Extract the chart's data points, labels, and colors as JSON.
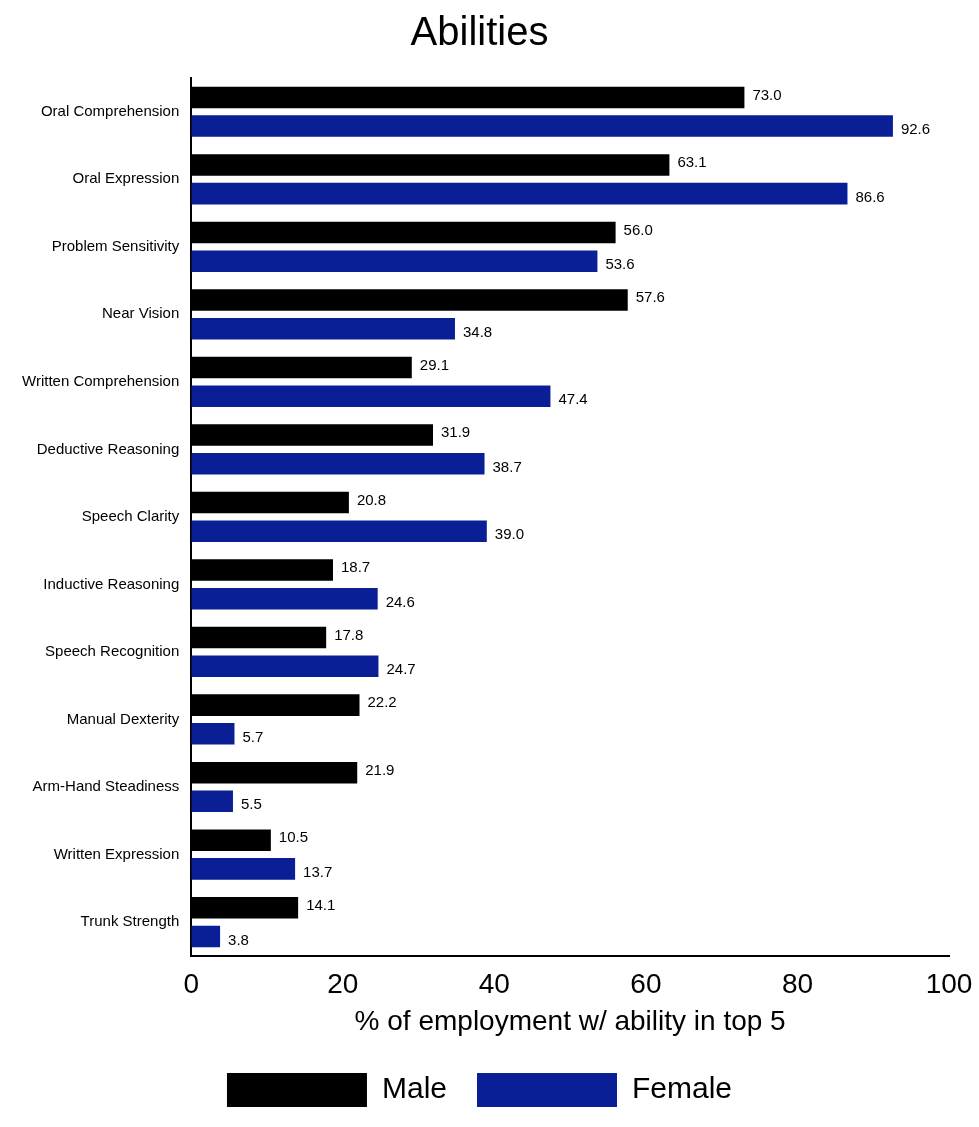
{
  "chart_data": {
    "type": "bar",
    "orientation": "horizontal",
    "title": "Abilities",
    "xlabel": "% of employment w/ ability in top 5",
    "categories": [
      "Oral Comprehension",
      "Oral Expression",
      "Problem Sensitivity",
      "Near Vision",
      "Written Comprehension",
      "Deductive Reasoning",
      "Speech Clarity",
      "Inductive Reasoning",
      "Speech Recognition",
      "Manual Dexterity",
      "Arm-Hand Steadiness",
      "Written Expression",
      "Trunk Strength"
    ],
    "series": [
      {
        "name": "Male",
        "color": "#000000",
        "values": [
          73.0,
          63.1,
          56.0,
          57.6,
          29.1,
          31.9,
          20.8,
          18.7,
          17.8,
          22.2,
          21.9,
          10.5,
          14.1
        ],
        "value_labels": [
          "73.0",
          "63.1",
          "56.0",
          "57.6",
          "29.1",
          "31.9",
          "20.8",
          "18.7",
          "17.8",
          "22.2",
          "21.9",
          "10.5",
          "14.1"
        ]
      },
      {
        "name": "Female",
        "color": "#0a1f96",
        "values": [
          92.6,
          86.6,
          53.6,
          34.8,
          47.4,
          38.7,
          39.0,
          24.6,
          24.7,
          5.7,
          5.5,
          13.7,
          3.8
        ],
        "value_labels": [
          "92.6",
          "86.6",
          "53.6",
          "34.8",
          "47.4",
          "38.7",
          "39.0",
          "24.6",
          "24.7",
          "5.7",
          "5.5",
          "13.7",
          "3.8"
        ]
      }
    ],
    "xlim": [
      0,
      100
    ],
    "xticks": [
      0,
      20,
      40,
      60,
      80,
      100
    ],
    "grid": false,
    "legend": "bottom"
  }
}
